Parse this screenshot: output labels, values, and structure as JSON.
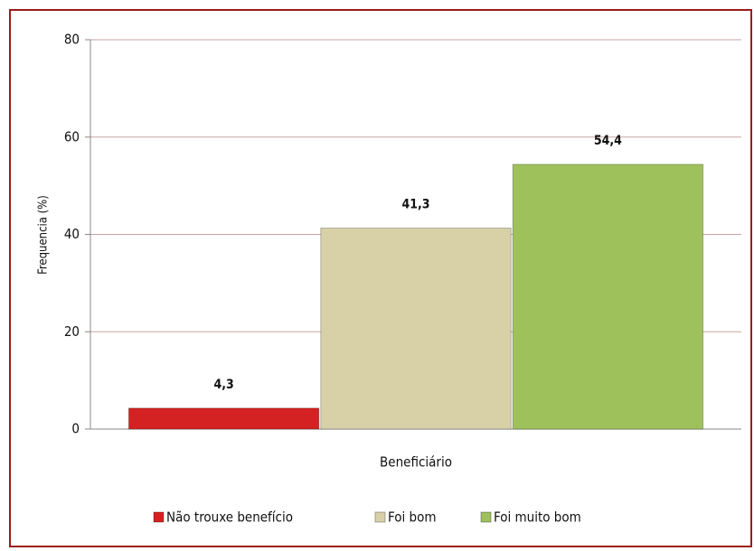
{
  "chart_data": {
    "type": "bar",
    "ylabel": "Frequencia (%)",
    "categories": [
      "Beneficiário"
    ],
    "series": [
      {
        "name": "Não trouxe benefício",
        "color": "#d42222",
        "values": [
          4.3
        ],
        "value_labels": [
          "4,3"
        ]
      },
      {
        "name": "Foi bom",
        "color": "#d8d1a8",
        "values": [
          41.3
        ],
        "value_labels": [
          "41,3"
        ]
      },
      {
        "name": "Foi muito bom",
        "color": "#9fc15c",
        "values": [
          54.4
        ],
        "value_labels": [
          "54,4"
        ]
      }
    ],
    "ylim": [
      0,
      80
    ],
    "yticks": [
      0,
      20,
      40,
      60,
      80
    ],
    "grid": true,
    "legend": "bottom"
  }
}
